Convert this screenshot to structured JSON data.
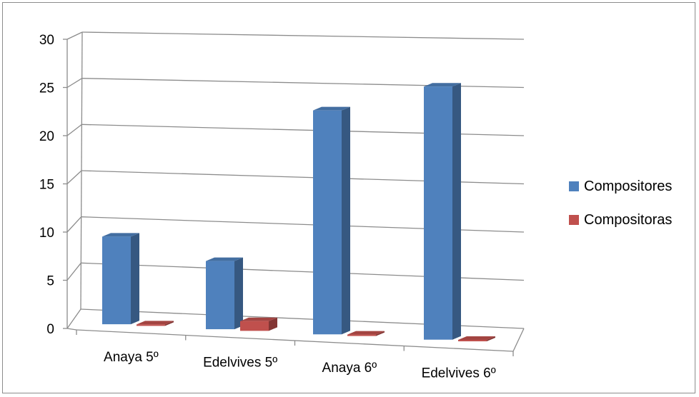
{
  "chart_data": {
    "type": "bar",
    "categories": [
      "Anaya 5º",
      "Edelvives 5º",
      "Anaya 6º",
      "Edelvives 6º"
    ],
    "series": [
      {
        "name": "Compositores",
        "values": [
          9,
          7,
          23,
          26
        ],
        "color": "#4f81bd"
      },
      {
        "name": "Compositoras",
        "values": [
          0,
          1,
          0,
          0
        ],
        "color": "#c0504d"
      }
    ],
    "yticks": [
      0,
      5,
      10,
      15,
      20,
      25,
      30
    ],
    "ylim": [
      0,
      30
    ],
    "grid": true,
    "legend_position": "right",
    "style": "3d-column"
  }
}
